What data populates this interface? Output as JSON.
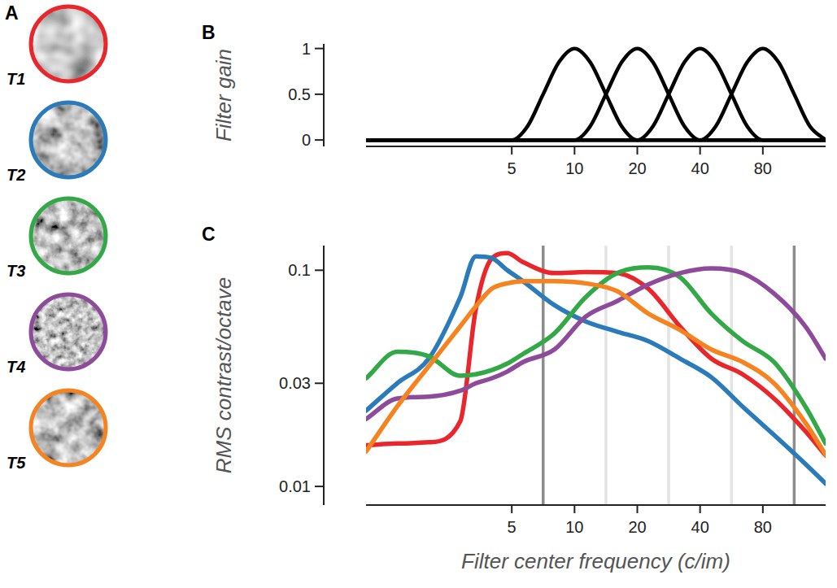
{
  "panel_a": {
    "panel_label": "A",
    "textures": [
      {
        "label": "T1",
        "color": "#e8262b"
      },
      {
        "label": "T2",
        "color": "#2b7bba"
      },
      {
        "label": "T3",
        "color": "#33a846"
      },
      {
        "label": "T4",
        "color": "#8e4b9b"
      },
      {
        "label": "T5",
        "color": "#f5831f"
      }
    ]
  },
  "chart_data": [
    {
      "type": "line",
      "panel_label": "B",
      "y_label": "Filter gain",
      "log": "x",
      "x": [
        1,
        5,
        5.95,
        7.07,
        8.41,
        10,
        11.89,
        14.14,
        16.82,
        20,
        23.78,
        28.28,
        33.64,
        40,
        47.57,
        56.57,
        67.27,
        80,
        95.14,
        113.1,
        134.5,
        160
      ],
      "series": [
        {
          "color": "#000000",
          "values": [
            0,
            0,
            0.15,
            0.5,
            0.85,
            1,
            0.85,
            0.5,
            0.15,
            0,
            0,
            0,
            0,
            0,
            0,
            0,
            0,
            0,
            0,
            0,
            0,
            0
          ]
        },
        {
          "color": "#000000",
          "values": [
            0,
            0,
            0,
            0,
            0,
            0,
            0.15,
            0.5,
            0.85,
            1,
            0.85,
            0.5,
            0.15,
            0,
            0,
            0,
            0,
            0,
            0,
            0,
            0,
            0
          ]
        },
        {
          "color": "#000000",
          "values": [
            0,
            0,
            0,
            0,
            0,
            0,
            0,
            0,
            0,
            0,
            0.15,
            0.5,
            0.85,
            1,
            0.85,
            0.5,
            0.15,
            0,
            0,
            0,
            0,
            0
          ]
        },
        {
          "color": "#000000",
          "values": [
            0,
            0,
            0,
            0,
            0,
            0,
            0,
            0,
            0,
            0,
            0,
            0,
            0,
            0,
            0.15,
            0.5,
            0.85,
            1,
            0.85,
            0.5,
            0.15,
            0
          ]
        }
      ],
      "xlim": [
        1,
        160
      ],
      "xticks": [
        5,
        10,
        20,
        40,
        80
      ],
      "ylim": [
        -0.07,
        1.05
      ],
      "yticks": [
        0,
        0.5,
        1
      ]
    },
    {
      "type": "line",
      "panel_label": "C",
      "x_label": "Filter center frequency (c/im)",
      "y_label": "RMS contrast/octave",
      "log": true,
      "x": [
        1,
        1.41,
        2,
        2.83,
        3.36,
        4,
        4.76,
        5.66,
        8,
        11.3,
        16,
        22.6,
        32,
        45.3,
        64,
        90.5,
        128,
        160
      ],
      "series": [
        {
          "color": "#e8262b",
          "values": [
            0.0155,
            0.0158,
            0.016,
            0.02,
            0.066,
            0.113,
            0.12,
            0.109,
            0.097,
            0.098,
            0.097,
            0.082,
            0.055,
            0.039,
            0.033,
            0.0255,
            0.018,
            0.0139
          ]
        },
        {
          "color": "#2b7bba",
          "values": [
            0.0224,
            0.03,
            0.039,
            0.075,
            0.116,
            0.114,
            0.1,
            0.089,
            0.069,
            0.058,
            0.052,
            0.047,
            0.039,
            0.032,
            0.0234,
            0.0173,
            0.0127,
            0.0103
          ]
        },
        {
          "color": "#33a846",
          "values": [
            0.0316,
            0.042,
            0.04,
            0.0325,
            0.033,
            0.0345,
            0.037,
            0.041,
            0.051,
            0.075,
            0.097,
            0.103,
            0.093,
            0.063,
            0.047,
            0.0376,
            0.0234,
            0.0158
          ]
        },
        {
          "color": "#8e4b9b",
          "values": [
            0.0205,
            0.0255,
            0.026,
            0.0277,
            0.03,
            0.0316,
            0.034,
            0.0376,
            0.043,
            0.061,
            0.072,
            0.086,
            0.097,
            0.102,
            0.097,
            0.078,
            0.055,
            0.039
          ]
        },
        {
          "color": "#f5831f",
          "values": [
            0.0145,
            0.0234,
            0.036,
            0.055,
            0.068,
            0.082,
            0.087,
            0.089,
            0.089,
            0.087,
            0.08,
            0.063,
            0.053,
            0.043,
            0.0376,
            0.03,
            0.0197,
            0.014
          ]
        }
      ],
      "vlines": [
        {
          "value": 7.07,
          "color": "#8c8c8c"
        },
        {
          "value": 14.14,
          "color": "#e4e4e4"
        },
        {
          "value": 28.28,
          "color": "#e4e4e4"
        },
        {
          "value": 56.57,
          "color": "#e4e4e4"
        },
        {
          "value": 113.1,
          "color": "#8c8c8c"
        }
      ],
      "xlim": [
        1,
        160
      ],
      "xticks": [
        5,
        10,
        20,
        40,
        80
      ],
      "ylim": [
        0.0082,
        0.13
      ],
      "yticks": [
        0.01,
        0.03,
        0.1
      ]
    }
  ]
}
